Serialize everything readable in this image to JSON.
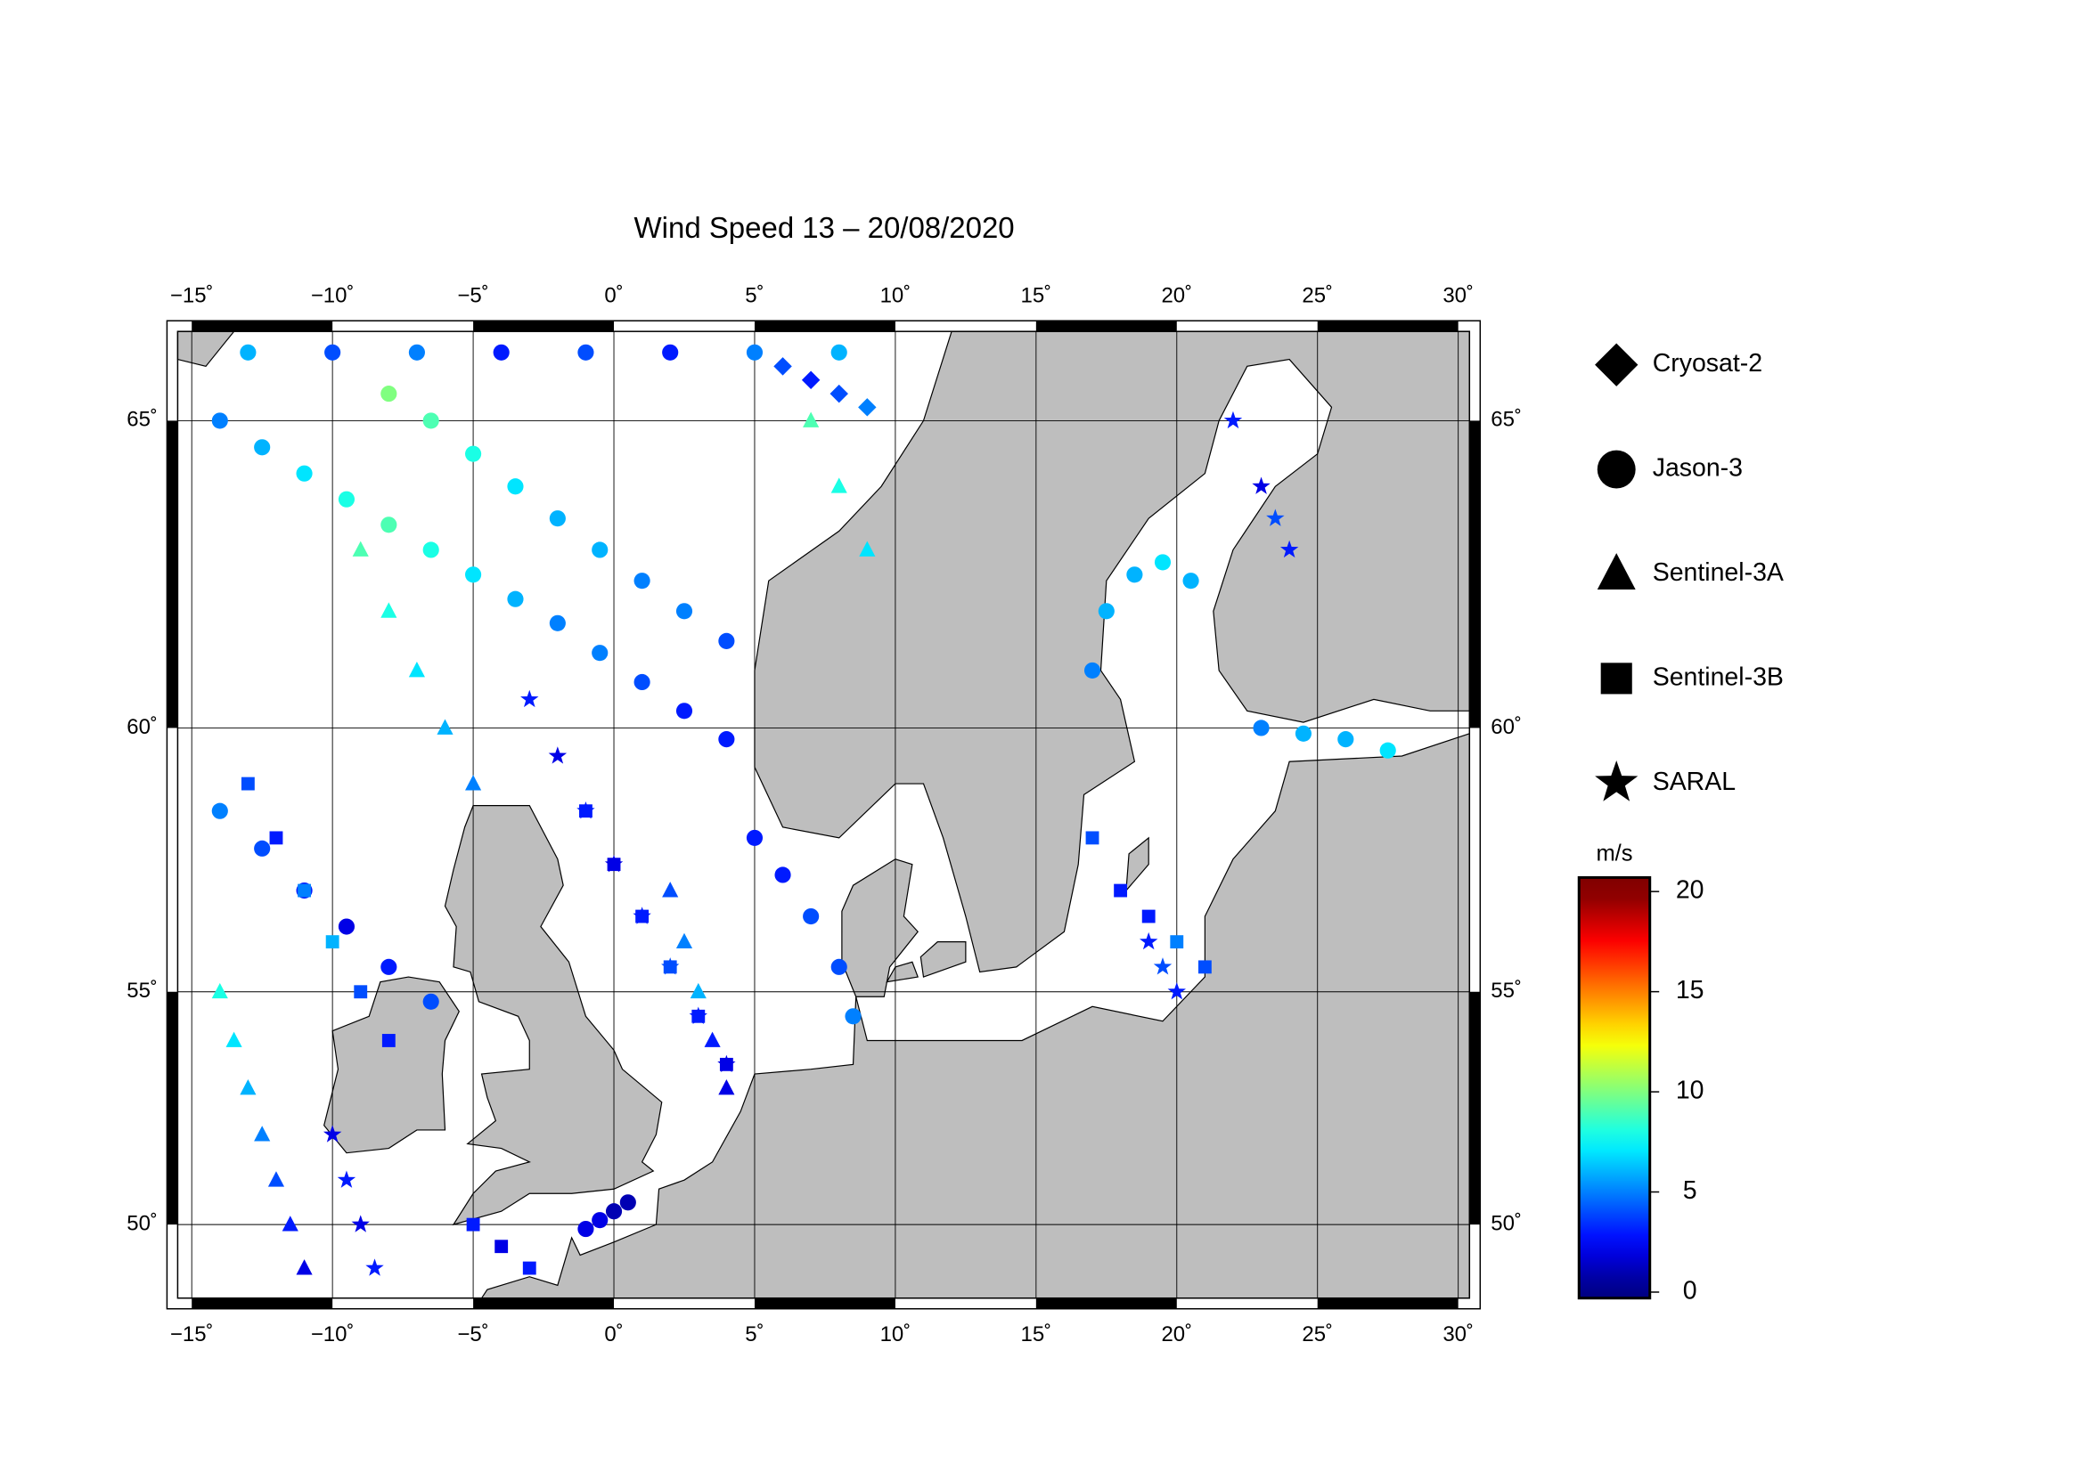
{
  "chart_data": {
    "type": "scatter-map",
    "title": "Wind Speed 13 – 20/08/2020",
    "xlim": [
      -15.5,
      30.4
    ],
    "ylim": [
      48.3,
      66.3
    ],
    "xticks": [
      {
        "value": -15,
        "label": "−15˚"
      },
      {
        "value": -10,
        "label": "−10˚"
      },
      {
        "value": -5,
        "label": "−5˚"
      },
      {
        "value": 0,
        "label": "0˚"
      },
      {
        "value": 5,
        "label": "5˚"
      },
      {
        "value": 10,
        "label": "10˚"
      },
      {
        "value": 15,
        "label": "15˚"
      },
      {
        "value": 20,
        "label": "20˚"
      },
      {
        "value": 25,
        "label": "25˚"
      },
      {
        "value": 30,
        "label": "30˚"
      }
    ],
    "yticks": [
      {
        "value": 50,
        "label": "50˚"
      },
      {
        "value": 55,
        "label": "55˚"
      },
      {
        "value": 60,
        "label": "60˚"
      },
      {
        "value": 65,
        "label": "65˚"
      }
    ],
    "grid": true,
    "colorbar": {
      "label": "m/s",
      "lim": [
        -0.3,
        20.7
      ],
      "range": [
        0,
        20
      ],
      "ticks": [
        0,
        5,
        10,
        15,
        20
      ],
      "colormap": "jet"
    },
    "series": [
      {
        "name": "Cryosat-2",
        "marker": "diamond",
        "lon": [
          6,
          7,
          8,
          9
        ],
        "lat": [
          65.8,
          65.6,
          65.4,
          65.2
        ],
        "values": [
          4,
          3,
          4,
          5
        ]
      },
      {
        "name": "Jason-3",
        "marker": "circle",
        "lon": [
          -14,
          -12.5,
          -11,
          -9.5,
          -8,
          -6.5,
          -5,
          -3.5,
          -2,
          -0.5,
          1,
          2.5,
          4,
          -13,
          -10,
          -7,
          -4,
          -1,
          2,
          5,
          8,
          -14,
          -12.5,
          -11,
          -9.5,
          -8,
          -6.5,
          4,
          2.5,
          1,
          -0.5,
          -2,
          -3.5,
          -5,
          -6.5,
          -8,
          5,
          6,
          7,
          8,
          8.5,
          17,
          17.5,
          18.5,
          19.5,
          20.5,
          23,
          24.5,
          26,
          27.5,
          -1,
          -0.5,
          0,
          0.5
        ],
        "lat": [
          65,
          64.6,
          64.2,
          63.8,
          63.4,
          63,
          62.6,
          62.2,
          61.8,
          61.3,
          60.8,
          60.3,
          59.8,
          66,
          66,
          66,
          66,
          66,
          66,
          66,
          66,
          58.5,
          57.8,
          57,
          56.3,
          55.5,
          54.8,
          61.5,
          62,
          62.5,
          63,
          63.5,
          64,
          64.5,
          65,
          65.4,
          58,
          57.3,
          56.5,
          55.5,
          54.5,
          61,
          62,
          62.6,
          62.8,
          62.5,
          60,
          59.9,
          59.8,
          59.6,
          49.9,
          50.1,
          50.3,
          50.5
        ],
        "values": [
          5,
          6,
          7,
          8,
          9,
          8,
          7,
          6,
          5,
          5,
          4,
          3,
          3,
          6,
          4,
          5,
          3,
          4,
          3,
          5,
          6,
          5,
          4,
          3,
          2,
          3,
          4,
          4,
          5,
          5,
          6,
          6,
          7,
          8,
          9,
          10,
          3,
          3,
          4,
          4,
          5,
          5,
          6,
          6,
          7,
          6,
          5,
          6,
          6,
          7,
          2,
          2,
          1,
          1
        ]
      },
      {
        "name": "Sentinel-3A",
        "marker": "triangle",
        "lon": [
          -14,
          -13.5,
          -13,
          -12.5,
          -12,
          -11.5,
          -11,
          -9,
          -8,
          -7,
          -6,
          -5,
          2,
          2.5,
          3,
          3.5,
          4,
          7,
          8,
          9
        ],
        "lat": [
          55,
          54,
          53,
          52,
          51,
          50,
          49,
          63,
          62,
          61,
          60,
          59,
          57,
          56,
          55,
          54,
          53,
          65,
          64,
          63
        ],
        "values": [
          8,
          7,
          6,
          5,
          4,
          3,
          2,
          9,
          8,
          7,
          6,
          5,
          4,
          5,
          6,
          3,
          2,
          9,
          8,
          7
        ]
      },
      {
        "name": "Sentinel-3B",
        "marker": "square",
        "lon": [
          -13,
          -12,
          -11,
          -10,
          -9,
          -8,
          -1,
          0,
          1,
          2,
          3,
          4,
          17,
          18,
          19,
          20,
          21,
          -5,
          -4,
          -3
        ],
        "lat": [
          59,
          58,
          57,
          56,
          55,
          54,
          58.5,
          57.5,
          56.5,
          55.5,
          54.5,
          53.5,
          58,
          57,
          56.5,
          56,
          55.5,
          50,
          49.5,
          49
        ],
        "values": [
          4,
          3,
          5,
          6,
          4,
          3,
          3,
          2,
          3,
          4,
          3,
          2,
          4,
          3,
          3,
          5,
          4,
          3,
          2,
          3
        ]
      },
      {
        "name": "SARAL",
        "marker": "star",
        "lon": [
          -3,
          -2,
          -1,
          0,
          1,
          2,
          3,
          4,
          -10,
          -9.5,
          -9,
          -8.5,
          22,
          23,
          23.5,
          24,
          19,
          19.5,
          20
        ],
        "lat": [
          60.5,
          59.5,
          58.5,
          57.5,
          56.5,
          55.5,
          54.5,
          53.5,
          52,
          51,
          50,
          49,
          65,
          64,
          63.5,
          63,
          56,
          55.5,
          55
        ],
        "values": [
          3,
          2,
          3,
          2,
          3,
          4,
          3,
          2,
          2,
          3,
          2,
          3,
          3,
          2,
          4,
          3,
          3,
          4,
          3
        ]
      }
    ]
  }
}
